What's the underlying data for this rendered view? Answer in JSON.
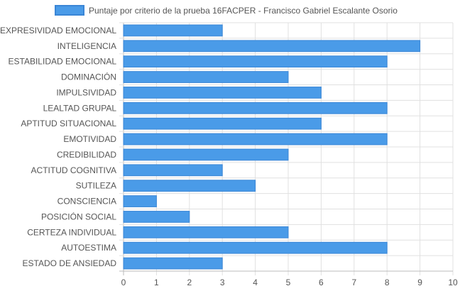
{
  "chart_data": {
    "type": "bar",
    "orientation": "horizontal",
    "categories": [
      "EXPRESIVIDAD EMOCIONAL",
      "INTELIGENCIA",
      "ESTABILIDAD EMOCIONAL",
      "DOMINACIÓN",
      "IMPULSIVIDAD",
      "LEALTAD GRUPAL",
      "APTITUD SITUACIONAL",
      "EMOTIVIDAD",
      "CREDIBILIDAD",
      "ACTITUD COGNITIVA",
      "SUTILEZA",
      "CONSCIENCIA",
      "POSICIÓN SOCIAL",
      "CERTEZA INDIVIDUAL",
      "AUTOESTIMA",
      "ESTADO DE ANSIEDAD"
    ],
    "series": [
      {
        "name": "Puntaje por criterio de la prueba 16FACPER - Francisco Gabriel Escalante Osorio",
        "values": [
          3,
          9,
          8,
          5,
          6,
          8,
          6,
          8,
          5,
          3,
          4,
          1,
          2,
          5,
          8,
          3
        ]
      }
    ],
    "xlim": [
      0,
      10
    ],
    "x_ticks": [
      "0",
      "1",
      "2",
      "3",
      "4",
      "5",
      "6",
      "7",
      "8",
      "9",
      "10"
    ],
    "legend_position": "top",
    "grid": true,
    "colors": {
      "bar_fill": "#4a9be8",
      "bar_stroke": "#3a86d6",
      "grid": "#e0e0e0",
      "axis": "#bbbbbb",
      "text": "#555555"
    }
  }
}
